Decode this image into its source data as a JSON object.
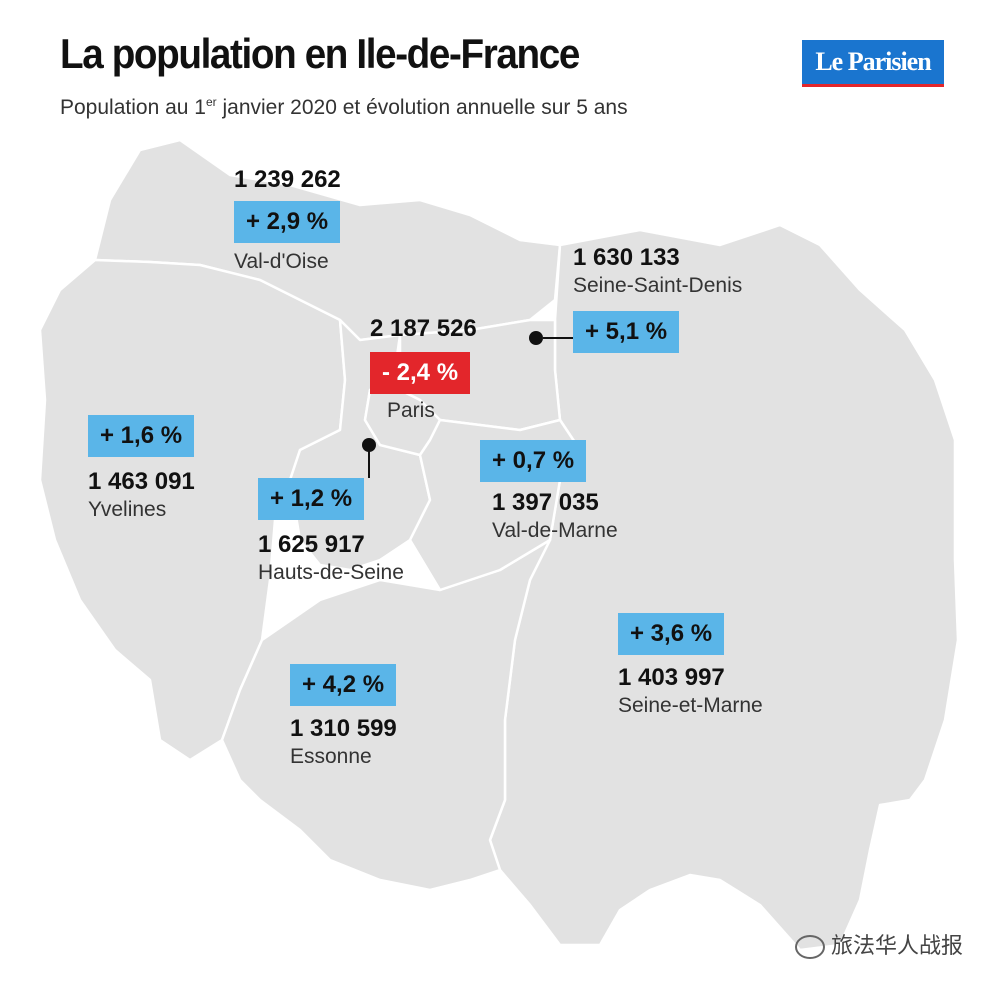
{
  "header": {
    "title": "La population en Ile-de-France",
    "subtitle_pre": "Population au 1",
    "subtitle_sup": "er",
    "subtitle_post": " janvier 2020 et évolution annuelle sur 5 ans"
  },
  "logo": {
    "text": "Le Parisien"
  },
  "colors": {
    "increase": "#5ab5e8",
    "decrease": "#e3262b",
    "map_fill": "#e2e2e2",
    "border": "#ffffff"
  },
  "departments": {
    "val_doise": {
      "name": "Val-d'Oise",
      "population": "1 239 262",
      "change": "+ 2,9 %"
    },
    "seine_saint_denis": {
      "name": "Seine-Saint-Denis",
      "population": "1 630 133",
      "change": "+ 5,1 %"
    },
    "paris": {
      "name": "Paris",
      "population": "2 187 526",
      "change": "- 2,4 %"
    },
    "yvelines": {
      "name": "Yvelines",
      "population": "1 463 091",
      "change": "+ 1,6 %"
    },
    "hauts_de_seine": {
      "name": "Hauts-de-Seine",
      "population": "1 625 917",
      "change": "+ 1,2 %"
    },
    "val_de_marne": {
      "name": "Val-de-Marne",
      "population": "1 397 035",
      "change": "+ 0,7 %"
    },
    "seine_et_marne": {
      "name": "Seine-et-Marne",
      "population": "1 403 997",
      "change": "+ 3,6 %"
    },
    "essonne": {
      "name": "Essonne",
      "population": "1 310 599",
      "change": "+ 4,2 %"
    }
  },
  "watermark": {
    "text": "旅法华人战报"
  }
}
